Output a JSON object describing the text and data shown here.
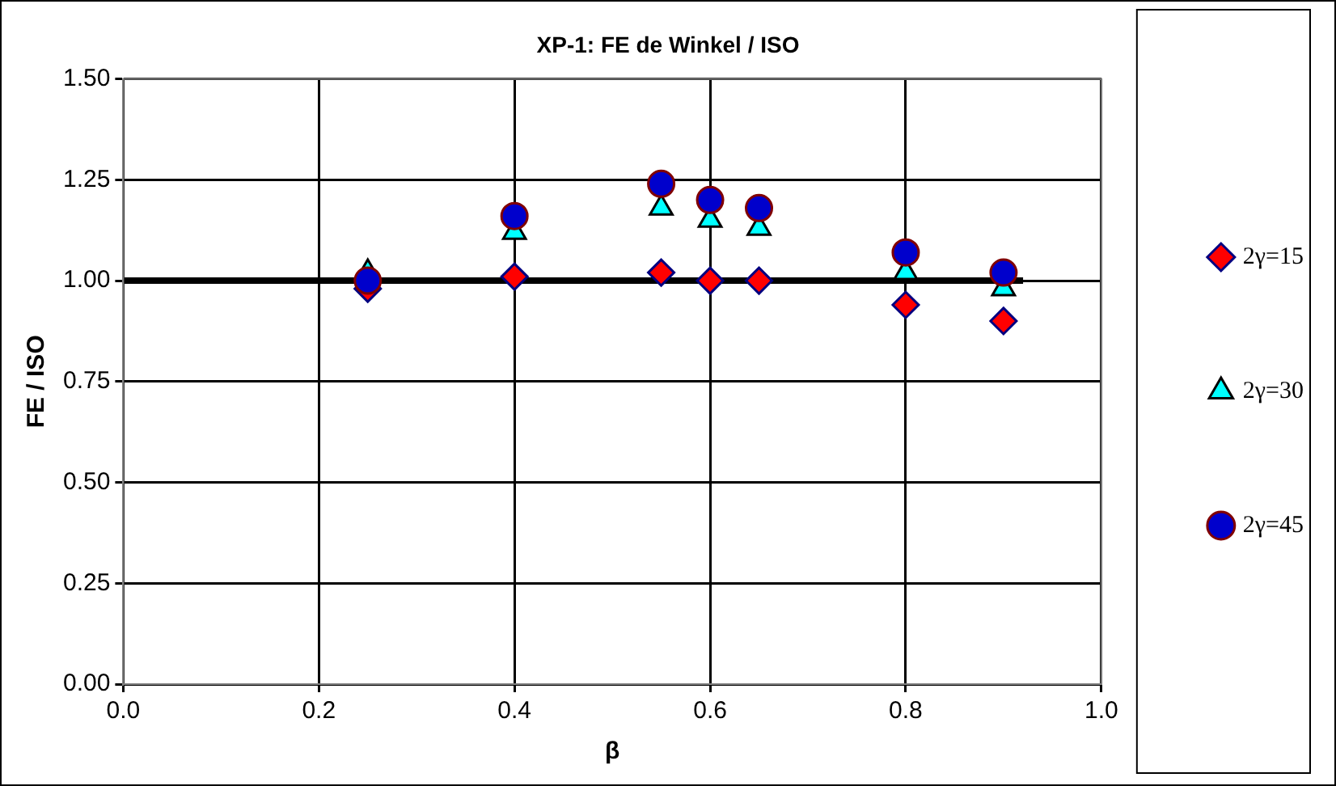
{
  "chart_data": {
    "type": "scatter",
    "title": "XP-1: FE de Winkel / ISO",
    "xlabel": "β",
    "ylabel": "FE / ISO",
    "x": [
      0.25,
      0.4,
      0.55,
      0.6,
      0.65,
      0.8,
      0.9
    ],
    "series": [
      {
        "name": "2γ=15",
        "color": "#ff0000",
        "marker": "diamond",
        "values": [
          0.98,
          1.01,
          1.02,
          1.0,
          1.0,
          0.94,
          0.9
        ]
      },
      {
        "name": "2γ=30",
        "color": "#00ffff",
        "marker": "triangle",
        "values": [
          1.02,
          1.12,
          1.18,
          1.15,
          1.13,
          1.02,
          0.98
        ]
      },
      {
        "name": "2γ=45",
        "color": "#0000cc",
        "marker": "circle",
        "values": [
          1.0,
          1.16,
          1.24,
          1.2,
          1.18,
          1.07,
          1.02
        ]
      },
      {
        "type": "line",
        "color": "#000000",
        "marker": "none",
        "x": [
          0,
          0.92
        ],
        "values": [
          1,
          1
        ]
      }
    ],
    "xlim": [
      0,
      1
    ],
    "xticks": [
      {
        "value": 0,
        "label": "0.0"
      },
      {
        "value": 0.2,
        "label": "0.2"
      },
      {
        "value": 0.4,
        "label": "0.4"
      },
      {
        "value": 0.6,
        "label": "0.6"
      },
      {
        "value": 0.8,
        "label": "0.8"
      },
      {
        "value": 1,
        "label": "1.0"
      }
    ],
    "ylim": [
      0,
      1.5
    ],
    "yticks": [
      {
        "value": 0,
        "label": "0.00"
      },
      {
        "value": 0.25,
        "label": "0.25"
      },
      {
        "value": 0.5,
        "label": "0.50"
      },
      {
        "value": 0.75,
        "label": "0.75"
      },
      {
        "value": 1,
        "label": "1.00"
      },
      {
        "value": 1.25,
        "label": "1.25"
      },
      {
        "value": 1.5,
        "label": "1.50"
      }
    ],
    "grid": true,
    "legend": "right"
  }
}
